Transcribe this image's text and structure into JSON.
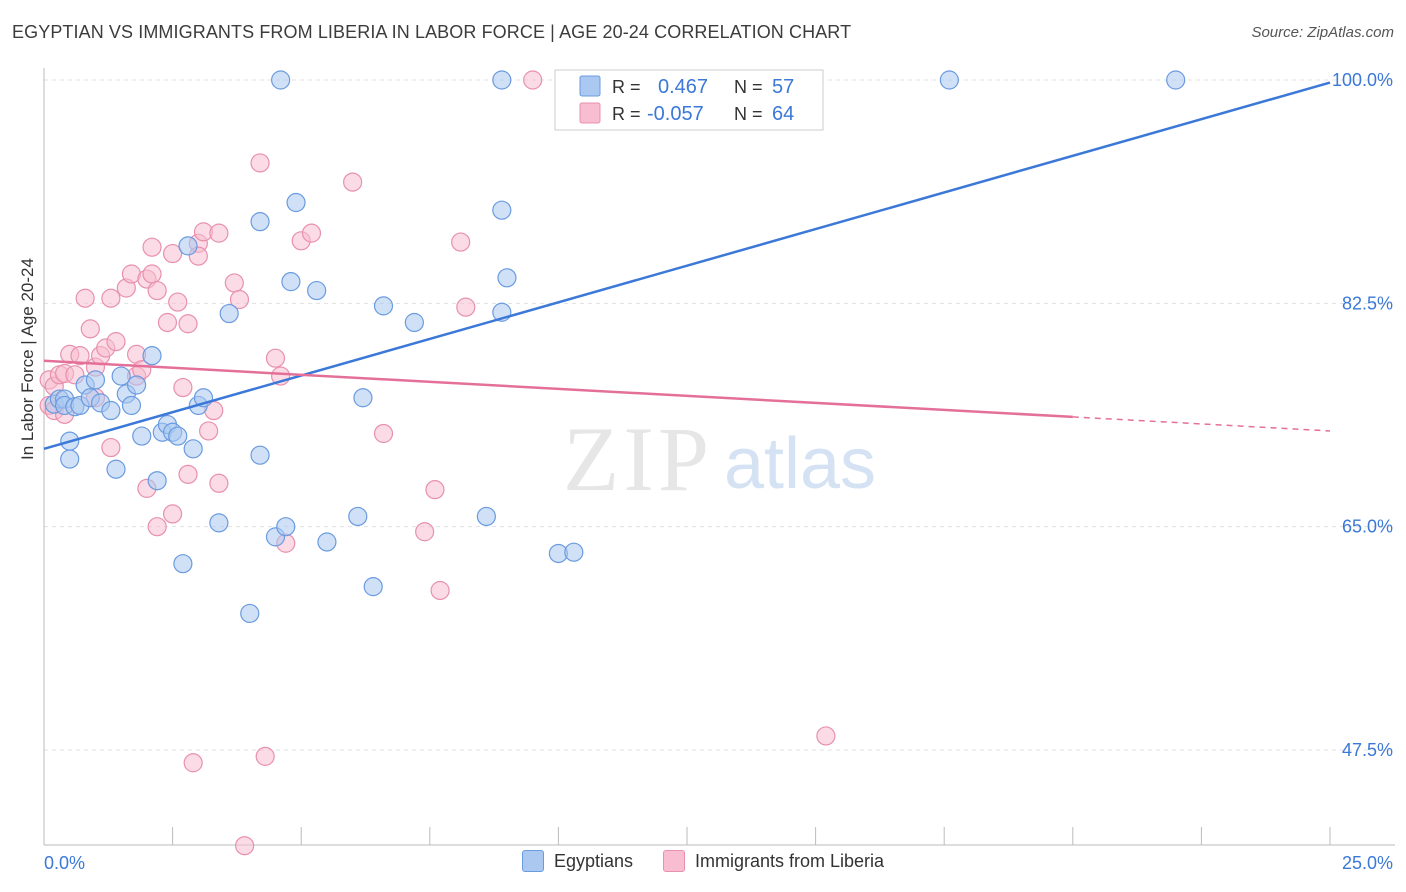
{
  "header": {
    "title": "EGYPTIAN VS IMMIGRANTS FROM LIBERIA IN LABOR FORCE | AGE 20-24 CORRELATION CHART",
    "source": "Source: ZipAtlas.com"
  },
  "watermark": {
    "zip": "ZIP",
    "atlas": "atlas"
  },
  "legend_box": {
    "row1": {
      "r_label": "R =",
      "r_value": "0.467",
      "n_label": "N =",
      "n_value": "57"
    },
    "row2": {
      "r_label": "R =",
      "r_value": "-0.057",
      "n_label": "N =",
      "n_value": "64"
    }
  },
  "colors": {
    "blue_fill": "#aac8f0",
    "blue_stroke": "#6a9be0",
    "blue_line": "#3b78d8",
    "pink_fill": "#f8bdd0",
    "pink_stroke": "#e890ae",
    "pink_line": "#e4709a",
    "axis_text": "#3b78d8",
    "grid": "#e0e0e0"
  },
  "chart_data": {
    "type": "scatter",
    "title": "EGYPTIAN VS IMMIGRANTS FROM LIBERIA IN LABOR FORCE | AGE 20-24 CORRELATION CHART",
    "xlabel": "",
    "ylabel": "In Labor Force | Age 20-24",
    "xlim": [
      0,
      25
    ],
    "ylim": [
      32,
      103
    ],
    "x_tick_labels": [
      "0.0%",
      "25.0%"
    ],
    "y_ticks": [
      47.5,
      65.0,
      82.5,
      100.0
    ],
    "y_tick_labels": [
      "47.5%",
      "65.0%",
      "82.5%",
      "100.0%"
    ],
    "grid": true,
    "legend_position": "top-center",
    "series": [
      {
        "name": "Egyptians",
        "r": 0.467,
        "n": 57,
        "trend": {
          "x": [
            0,
            25
          ],
          "y": [
            71.1,
            99.8
          ]
        },
        "points": [
          [
            0.2,
            74.6
          ],
          [
            0.3,
            75.0
          ],
          [
            0.4,
            75.0
          ],
          [
            0.4,
            74.5
          ],
          [
            0.5,
            70.3
          ],
          [
            0.5,
            71.7
          ],
          [
            0.6,
            74.4
          ],
          [
            0.7,
            74.5
          ],
          [
            0.8,
            76.1
          ],
          [
            0.9,
            75.1
          ],
          [
            1.0,
            76.5
          ],
          [
            1.1,
            74.7
          ],
          [
            1.3,
            74.1
          ],
          [
            1.4,
            69.5
          ],
          [
            1.5,
            76.8
          ],
          [
            1.6,
            75.4
          ],
          [
            1.7,
            74.5
          ],
          [
            1.8,
            76.1
          ],
          [
            1.9,
            72.1
          ],
          [
            2.1,
            78.4
          ],
          [
            2.2,
            68.6
          ],
          [
            2.3,
            72.4
          ],
          [
            2.4,
            73.0
          ],
          [
            2.5,
            72.4
          ],
          [
            2.6,
            72.1
          ],
          [
            2.7,
            62.1
          ],
          [
            2.8,
            87.0
          ],
          [
            2.9,
            71.1
          ],
          [
            3.0,
            74.5
          ],
          [
            3.1,
            75.1
          ],
          [
            3.4,
            65.3
          ],
          [
            3.6,
            81.7
          ],
          [
            4.0,
            58.2
          ],
          [
            4.2,
            88.9
          ],
          [
            4.2,
            70.6
          ],
          [
            4.5,
            64.2
          ],
          [
            4.6,
            100.0
          ],
          [
            4.7,
            65.0
          ],
          [
            4.8,
            84.2
          ],
          [
            4.9,
            90.4
          ],
          [
            5.3,
            83.5
          ],
          [
            5.5,
            63.8
          ],
          [
            6.1,
            65.8
          ],
          [
            6.2,
            75.1
          ],
          [
            6.4,
            60.3
          ],
          [
            6.6,
            82.3
          ],
          [
            7.2,
            81.0
          ],
          [
            8.6,
            65.8
          ],
          [
            8.9,
            89.8
          ],
          [
            8.9,
            100.0
          ],
          [
            8.9,
            81.8
          ],
          [
            9.0,
            84.5
          ],
          [
            10.0,
            62.9
          ],
          [
            10.3,
            63.0
          ],
          [
            11.9,
            100.0
          ],
          [
            17.6,
            100.0
          ],
          [
            22.0,
            100.0
          ]
        ]
      },
      {
        "name": "Immigrants from Liberia",
        "r": -0.057,
        "n": 64,
        "trend": {
          "x": [
            0,
            20
          ],
          "y": [
            78.0,
            73.6
          ]
        },
        "trend_dashed": {
          "x": [
            20,
            25
          ],
          "y": [
            73.6,
            72.5
          ]
        },
        "points": [
          [
            0.1,
            76.5
          ],
          [
            0.1,
            74.5
          ],
          [
            0.2,
            76.0
          ],
          [
            0.2,
            74.1
          ],
          [
            0.3,
            76.9
          ],
          [
            0.4,
            77.0
          ],
          [
            0.4,
            73.8
          ],
          [
            0.5,
            78.5
          ],
          [
            0.6,
            76.9
          ],
          [
            0.7,
            78.4
          ],
          [
            0.8,
            82.9
          ],
          [
            0.9,
            80.5
          ],
          [
            1.0,
            75.1
          ],
          [
            1.0,
            77.5
          ],
          [
            1.1,
            78.4
          ],
          [
            1.2,
            79.0
          ],
          [
            1.3,
            82.9
          ],
          [
            1.3,
            71.2
          ],
          [
            1.4,
            79.5
          ],
          [
            1.6,
            83.7
          ],
          [
            1.7,
            84.8
          ],
          [
            1.8,
            78.5
          ],
          [
            1.8,
            76.8
          ],
          [
            1.9,
            77.3
          ],
          [
            2.0,
            84.4
          ],
          [
            2.0,
            68.0
          ],
          [
            2.1,
            86.9
          ],
          [
            2.1,
            84.8
          ],
          [
            2.2,
            83.5
          ],
          [
            2.2,
            65.0
          ],
          [
            2.4,
            81.0
          ],
          [
            2.5,
            86.4
          ],
          [
            2.5,
            66.0
          ],
          [
            2.6,
            82.6
          ],
          [
            2.7,
            75.9
          ],
          [
            2.8,
            69.1
          ],
          [
            2.8,
            80.9
          ],
          [
            2.9,
            46.5
          ],
          [
            3.0,
            87.2
          ],
          [
            3.0,
            86.2
          ],
          [
            3.1,
            88.1
          ],
          [
            3.2,
            72.5
          ],
          [
            3.3,
            74.1
          ],
          [
            3.4,
            68.4
          ],
          [
            3.4,
            88.0
          ],
          [
            3.7,
            84.1
          ],
          [
            3.8,
            82.8
          ],
          [
            3.9,
            40.0
          ],
          [
            4.2,
            93.5
          ],
          [
            4.3,
            47.0
          ],
          [
            4.5,
            78.2
          ],
          [
            4.6,
            76.8
          ],
          [
            4.7,
            63.7
          ],
          [
            5.0,
            87.4
          ],
          [
            5.2,
            88.0
          ],
          [
            6.0,
            92.0
          ],
          [
            6.6,
            72.3
          ],
          [
            7.4,
            64.6
          ],
          [
            7.6,
            67.9
          ],
          [
            7.7,
            60.0
          ],
          [
            8.1,
            87.3
          ],
          [
            8.2,
            82.2
          ],
          [
            9.5,
            100.0
          ],
          [
            15.2,
            48.6
          ]
        ]
      }
    ]
  },
  "bottom_legend": {
    "egyptians_label": "Egyptians",
    "liberia_label": "Immigrants from Liberia"
  }
}
